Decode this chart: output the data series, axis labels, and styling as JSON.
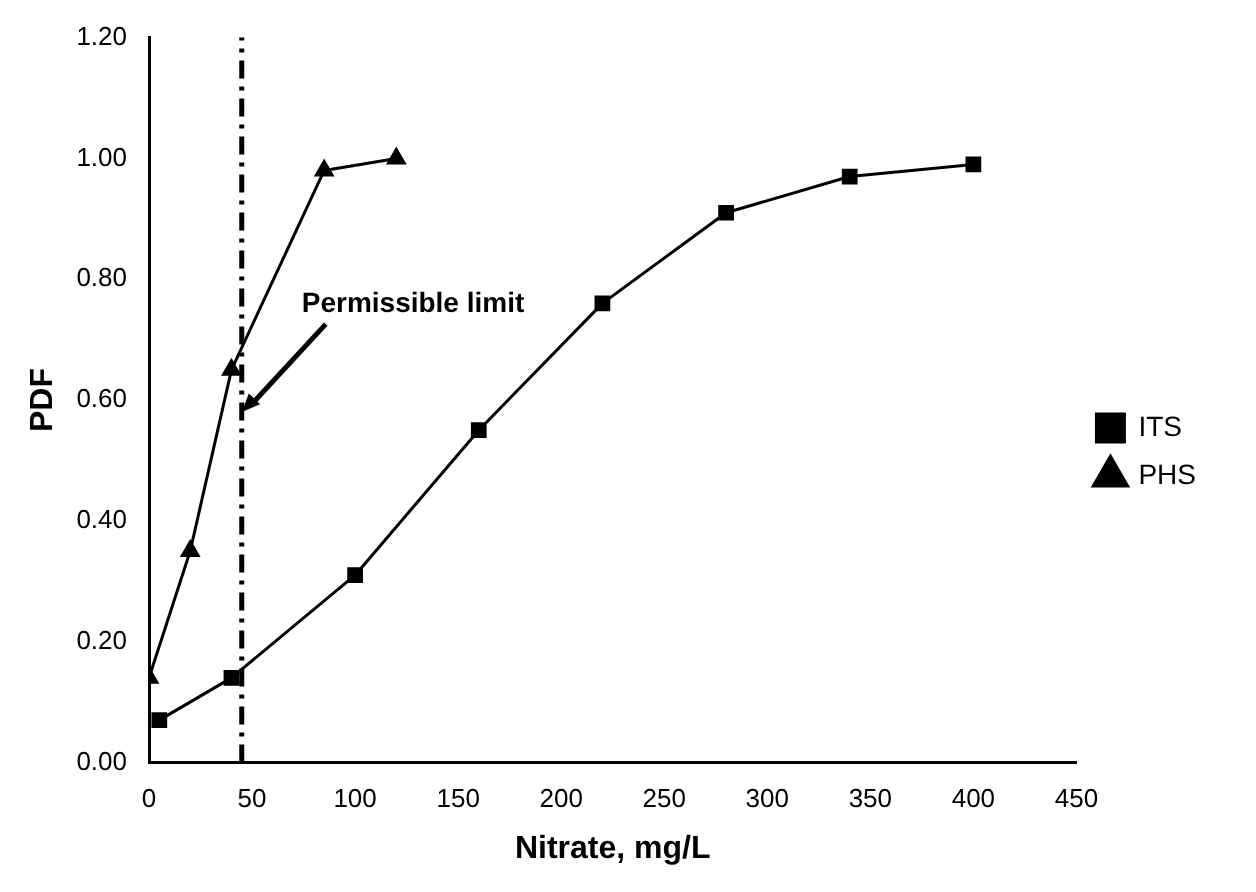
{
  "chart_data": {
    "type": "line",
    "xlabel": "Nitrate, mg/L",
    "ylabel": "PDF",
    "xlim": [
      0,
      450
    ],
    "xticks": [
      0,
      50,
      100,
      150,
      200,
      250,
      300,
      350,
      400,
      450
    ],
    "ylim": [
      0,
      1.2
    ],
    "yticks": [
      {
        "value": 0,
        "label": "0.00"
      },
      {
        "value": 0.2,
        "label": "0.20"
      },
      {
        "value": 0.4,
        "label": "0.40"
      },
      {
        "value": 0.6,
        "label": "0.60"
      },
      {
        "value": 0.8,
        "label": "0.80"
      },
      {
        "value": 1,
        "label": "1.00"
      },
      {
        "value": 1.2,
        "label": "1.20"
      }
    ],
    "series": [
      {
        "name": "ITS",
        "color": "#000000",
        "marker": "square",
        "x": [
          5,
          40,
          100,
          160,
          220,
          280,
          340,
          400
        ],
        "values": [
          0.07,
          0.14,
          0.31,
          0.55,
          0.76,
          0.91,
          0.97,
          0.99
        ]
      },
      {
        "name": "PHS",
        "color": "#000000",
        "marker": "triangle",
        "x": [
          0,
          20,
          40,
          85,
          120
        ],
        "values": [
          0.14,
          0.35,
          0.65,
          0.98,
          1.0
        ]
      }
    ],
    "ref_lines": [
      {
        "axis": "x",
        "value": 45,
        "color": "#000000",
        "line_style": "dashed"
      }
    ],
    "annotations": [
      {
        "text": "Permissible limit",
        "x": 45,
        "y": 0.58
      }
    ],
    "grid": false,
    "legend": "right"
  }
}
